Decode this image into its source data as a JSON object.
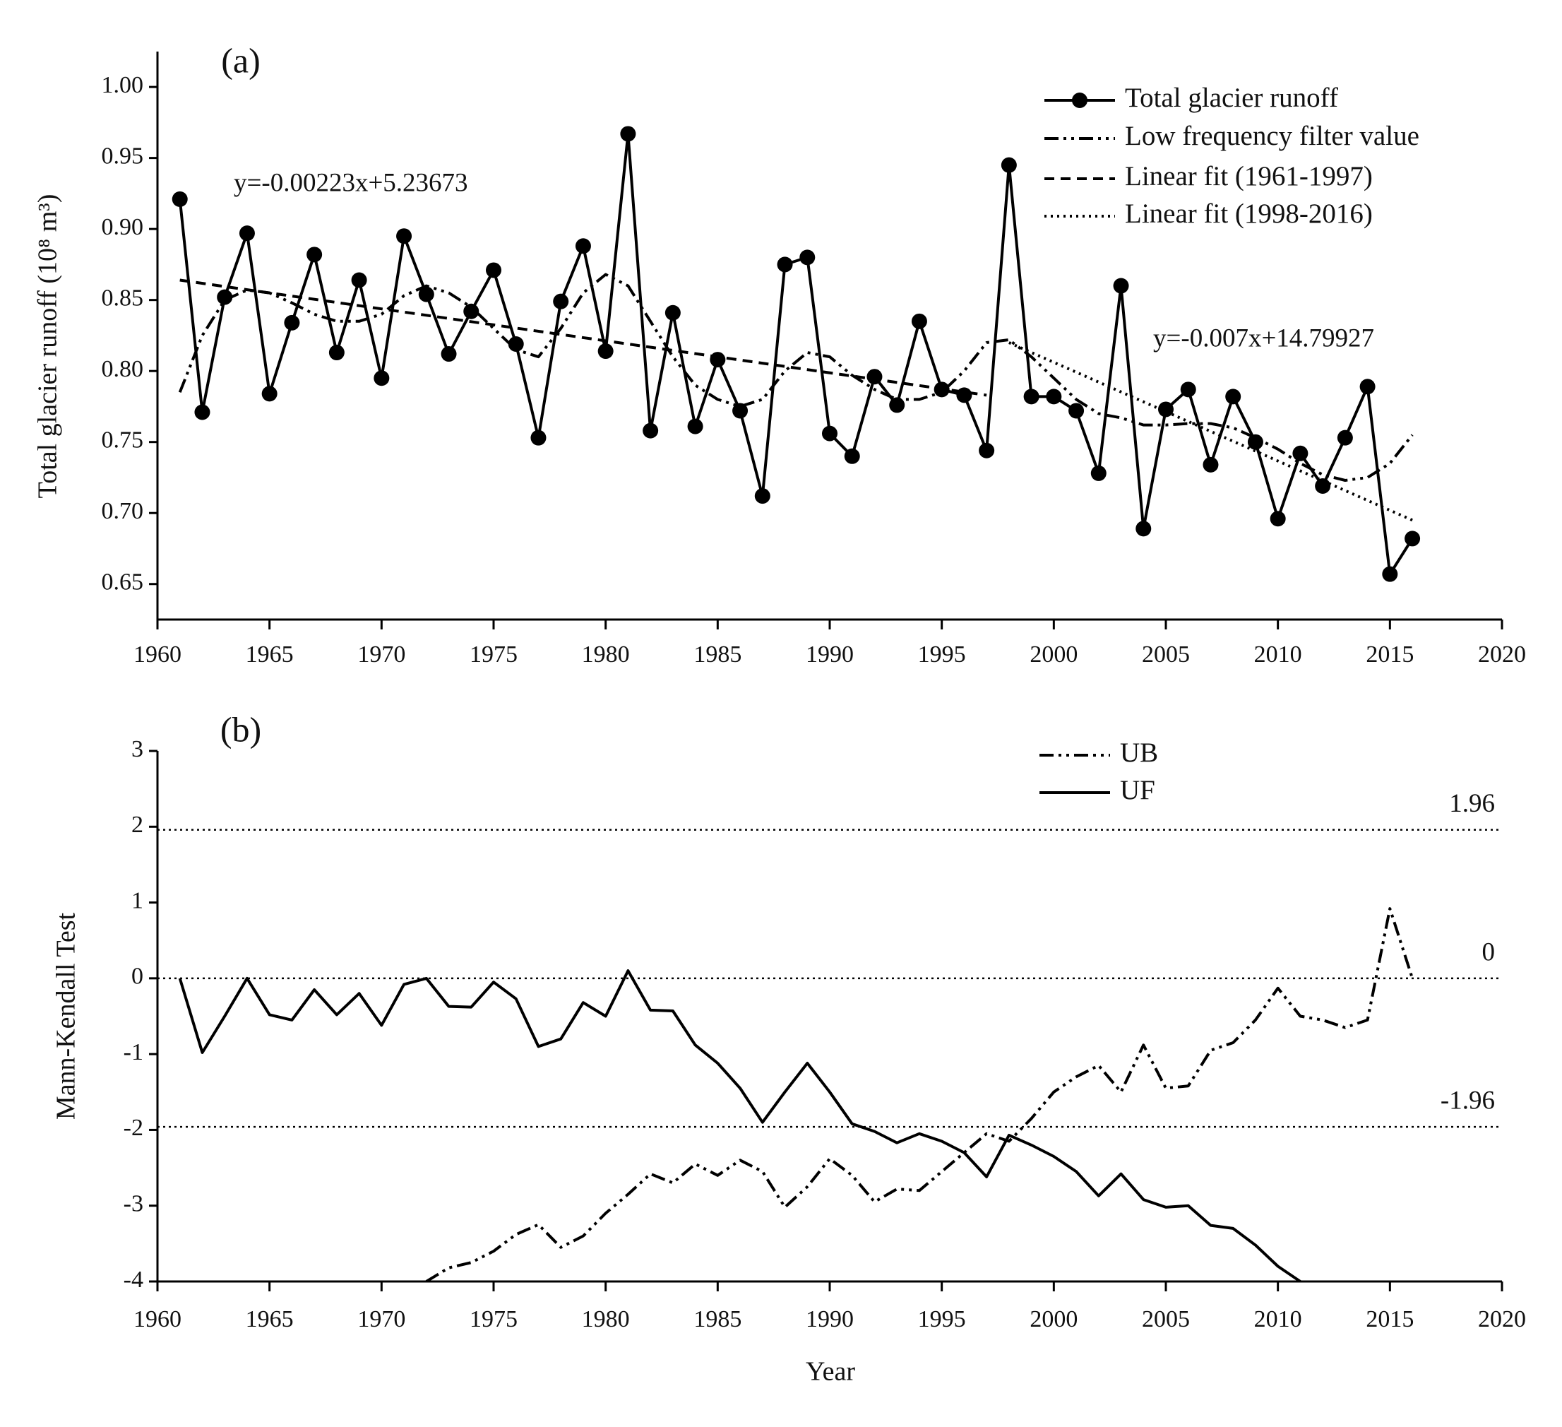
{
  "chart_data": [
    {
      "type": "line",
      "panel_label": "(a)",
      "ylabel": "Total glacier runoff (10⁸ m³)",
      "xlim": [
        1960,
        2020
      ],
      "xticks": [
        1960,
        1965,
        1970,
        1975,
        1980,
        1985,
        1990,
        1995,
        2000,
        2005,
        2010,
        2015,
        2020
      ],
      "ylim": [
        0.625,
        1.01
      ],
      "yticks": [
        0.65,
        {
          "value": 0.7,
          "label": "0.70"
        },
        0.75,
        {
          "value": 0.8,
          "label": "0.80"
        },
        0.85,
        {
          "value": 0.9,
          "label": "0.90"
        },
        0.95,
        {
          "value": 1.0,
          "label": "1.00"
        }
      ],
      "annotations": [
        "y=-0.00223x+5.23673",
        "y=-0.007x+14.79927"
      ],
      "series": [
        {
          "name": "Total glacier runoff",
          "color": "#000000",
          "style": "solid",
          "marker": "circle",
          "x": [
            1961,
            1962,
            1963,
            1964,
            1965,
            1966,
            1967,
            1968,
            1969,
            1970,
            1971,
            1972,
            1973,
            1974,
            1975,
            1976,
            1977,
            1978,
            1979,
            1980,
            1981,
            1982,
            1983,
            1984,
            1985,
            1986,
            1987,
            1988,
            1989,
            1990,
            1991,
            1992,
            1993,
            1994,
            1995,
            1996,
            1997,
            1998,
            1999,
            2000,
            2001,
            2002,
            2003,
            2004,
            2005,
            2006,
            2007,
            2008,
            2009,
            2010,
            2011,
            2012,
            2013,
            2014,
            2015,
            2016
          ],
          "values": [
            0.921,
            0.771,
            0.852,
            0.897,
            0.784,
            0.834,
            0.882,
            0.813,
            0.864,
            0.795,
            0.895,
            0.854,
            0.812,
            0.842,
            0.871,
            0.819,
            0.753,
            0.849,
            0.888,
            0.814,
            0.967,
            0.758,
            0.841,
            0.761,
            0.808,
            0.772,
            0.712,
            0.875,
            0.88,
            0.756,
            0.74,
            0.796,
            0.776,
            0.835,
            0.787,
            0.783,
            0.744,
            0.945,
            0.782,
            0.782,
            0.772,
            0.728,
            0.86,
            0.689,
            0.773,
            0.787,
            0.734,
            0.782,
            0.75,
            0.696,
            0.742,
            0.719,
            0.753,
            0.789,
            0.657,
            0.682
          ]
        },
        {
          "name": "Low frequency filter value",
          "color": "#000000",
          "style": "dash-dot-dot",
          "x": [
            1961,
            1962,
            1963,
            1964,
            1965,
            1966,
            1967,
            1968,
            1969,
            1970,
            1971,
            1972,
            1973,
            1974,
            1975,
            1976,
            1977,
            1978,
            1979,
            1980,
            1981,
            1982,
            1983,
            1984,
            1985,
            1986,
            1987,
            1988,
            1989,
            1990,
            1991,
            1992,
            1993,
            1994,
            1995,
            1996,
            1997,
            1998,
            1999,
            2000,
            2001,
            2002,
            2003,
            2004,
            2005,
            2006,
            2007,
            2008,
            2009,
            2010,
            2011,
            2012,
            2013,
            2014,
            2015,
            2016
          ],
          "values": [
            0.785,
            0.825,
            0.85,
            0.857,
            0.855,
            0.848,
            0.84,
            0.835,
            0.835,
            0.84,
            0.853,
            0.86,
            0.855,
            0.845,
            0.83,
            0.815,
            0.81,
            0.83,
            0.855,
            0.868,
            0.86,
            0.835,
            0.81,
            0.79,
            0.78,
            0.775,
            0.78,
            0.8,
            0.813,
            0.81,
            0.797,
            0.787,
            0.78,
            0.78,
            0.785,
            0.8,
            0.82,
            0.822,
            0.81,
            0.795,
            0.78,
            0.77,
            0.767,
            0.762,
            0.762,
            0.763,
            0.763,
            0.76,
            0.753,
            0.745,
            0.735,
            0.727,
            0.723,
            0.725,
            0.735,
            0.755
          ]
        },
        {
          "name": "Linear fit (1961-1997)",
          "color": "#000000",
          "style": "dashed",
          "x": [
            1961,
            1997
          ],
          "values": [
            0.864,
            0.783
          ]
        },
        {
          "name": "Linear fit (1998-2016)",
          "color": "#000000",
          "style": "dotted",
          "x": [
            1998,
            2016
          ],
          "values": [
            0.82,
            0.695
          ]
        }
      ]
    },
    {
      "type": "line",
      "panel_label": "(b)",
      "ylabel": "Mann-Kendall Test",
      "xlabel": "Year",
      "xlim": [
        1960,
        2020
      ],
      "xticks": [
        1960,
        1965,
        1970,
        1975,
        1980,
        1985,
        1990,
        1995,
        2000,
        2005,
        2010,
        2015,
        2020
      ],
      "ylim": [
        -4,
        3
      ],
      "yticks": [
        -4,
        -3,
        -2,
        -1,
        0,
        1,
        2,
        3
      ],
      "reference_lines": [
        1.96,
        0,
        -1.96
      ],
      "series": [
        {
          "name": "UB",
          "color": "#000000",
          "style": "dash-dot-dot",
          "x": [
            1972,
            1973,
            1974,
            1975,
            1976,
            1977,
            1978,
            1979,
            1980,
            1981,
            1982,
            1983,
            1984,
            1985,
            1986,
            1987,
            1988,
            1989,
            1990,
            1991,
            1992,
            1993,
            1994,
            1995,
            1996,
            1997,
            1998,
            1999,
            2000,
            2001,
            2002,
            2003,
            2004,
            2005,
            2006,
            2007,
            2008,
            2009,
            2010,
            2011,
            2012,
            2013,
            2014,
            2015,
            2016
          ],
          "values": [
            -4.0,
            -3.82,
            -3.75,
            -3.6,
            -3.38,
            -3.25,
            -3.55,
            -3.4,
            -3.1,
            -2.85,
            -2.58,
            -2.7,
            -2.45,
            -2.6,
            -2.4,
            -2.55,
            -3.02,
            -2.75,
            -2.38,
            -2.6,
            -2.95,
            -2.78,
            -2.8,
            -2.55,
            -2.3,
            -2.05,
            -2.15,
            -1.85,
            -1.5,
            -1.3,
            -1.15,
            -1.5,
            -0.88,
            -1.45,
            -1.42,
            -0.95,
            -0.85,
            -0.55,
            -0.13,
            -0.5,
            -0.55,
            -0.65,
            -0.55,
            0.92,
            0
          ]
        },
        {
          "name": "UF",
          "color": "#000000",
          "style": "solid",
          "x": [
            1961,
            1962,
            1963,
            1964,
            1965,
            1966,
            1967,
            1968,
            1969,
            1970,
            1971,
            1972,
            1973,
            1974,
            1975,
            1976,
            1977,
            1978,
            1979,
            1980,
            1981,
            1982,
            1983,
            1984,
            1985,
            1986,
            1987,
            1988,
            1989,
            1990,
            1991,
            1992,
            1993,
            1994,
            1995,
            1996,
            1997,
            1998,
            1999,
            2000,
            2001,
            2002,
            2003,
            2004,
            2005,
            2006,
            2007,
            2008,
            2009,
            2010,
            2011
          ],
          "values": [
            0,
            -0.98,
            -0.5,
            0,
            -0.48,
            -0.55,
            -0.15,
            -0.48,
            -0.2,
            -0.62,
            -0.08,
            0,
            -0.37,
            -0.38,
            -0.05,
            -0.27,
            -0.9,
            -0.8,
            -0.32,
            -0.5,
            0.1,
            -0.42,
            -0.43,
            -0.88,
            -1.12,
            -1.45,
            -1.9,
            -1.5,
            -1.12,
            -1.5,
            -1.92,
            -2.02,
            -2.17,
            -2.05,
            -2.15,
            -2.3,
            -2.62,
            -2.07,
            -2.2,
            -2.35,
            -2.55,
            -2.87,
            -2.58,
            -2.92,
            -3.02,
            -3.0,
            -3.26,
            -3.3,
            -3.52,
            -3.8,
            -4.0
          ]
        }
      ]
    }
  ]
}
